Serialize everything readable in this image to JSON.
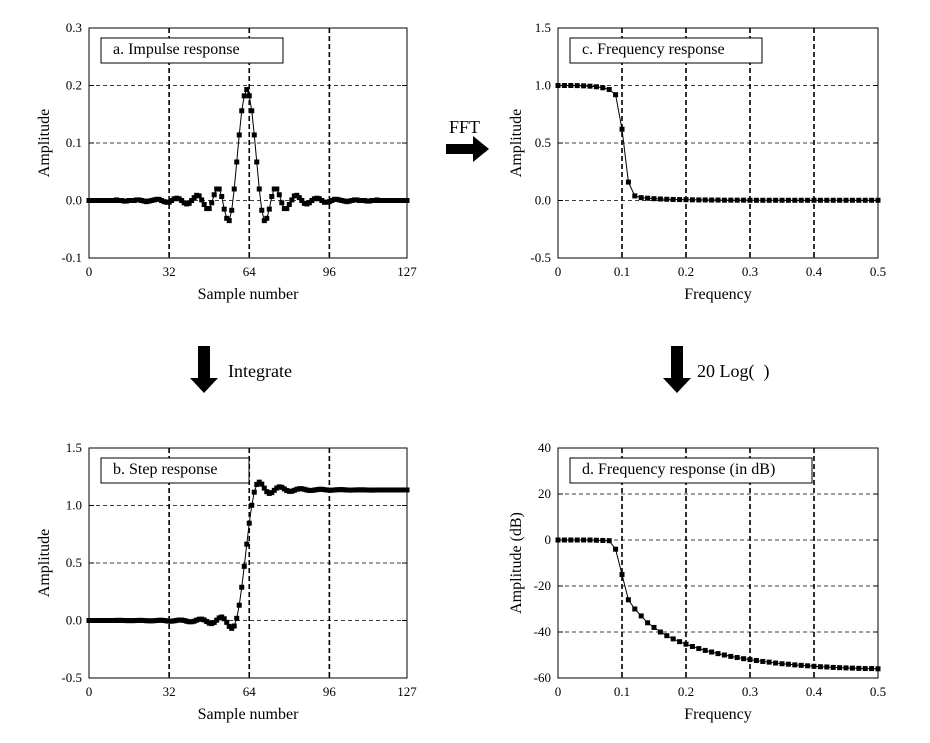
{
  "figure": {
    "transforms": [
      {
        "id": "fft",
        "label": "FFT"
      },
      {
        "id": "integrate",
        "label": "Integrate"
      },
      {
        "id": "log",
        "label": "20 Log(  )"
      }
    ]
  },
  "chart_data": [
    {
      "id": "a",
      "type": "line",
      "title": "a.  Impulse response",
      "xlabel": "Sample number",
      "ylabel": "Amplitude",
      "xlim": [
        0,
        127
      ],
      "ylim": [
        -0.1,
        0.3
      ],
      "xticks": [
        0,
        32,
        64,
        96,
        127
      ],
      "xtick_labels": [
        "0",
        "32",
        "64",
        "96",
        "127"
      ],
      "yticks": [
        -0.1,
        0.0,
        0.1,
        0.2,
        0.3
      ],
      "ytick_labels": [
        "-0.1",
        "0.0",
        "0.1",
        "0.2",
        "0.3"
      ],
      "grid": true,
      "markers": "square",
      "x": [
        0,
        1,
        2,
        3,
        4,
        5,
        6,
        7,
        8,
        9,
        10,
        11,
        12,
        13,
        14,
        15,
        16,
        17,
        18,
        19,
        20,
        21,
        22,
        23,
        24,
        25,
        26,
        27,
        28,
        29,
        30,
        31,
        32,
        33,
        34,
        35,
        36,
        37,
        38,
        39,
        40,
        41,
        42,
        43,
        44,
        45,
        46,
        47,
        48,
        49,
        50,
        51,
        52,
        53,
        54,
        55,
        56,
        57,
        58,
        59,
        60,
        61,
        62,
        63,
        64,
        65,
        66,
        67,
        68,
        69,
        70,
        71,
        72,
        73,
        74,
        75,
        76,
        77,
        78,
        79,
        80,
        81,
        82,
        83,
        84,
        85,
        86,
        87,
        88,
        89,
        90,
        91,
        92,
        93,
        94,
        95,
        96,
        97,
        98,
        99,
        100,
        101,
        102,
        103,
        104,
        105,
        106,
        107,
        108,
        109,
        110,
        111,
        112,
        113,
        114,
        115,
        116,
        117,
        118,
        119,
        120,
        121,
        122,
        123,
        124,
        125,
        126,
        127
      ],
      "y": [
        0.0,
        0.0,
        0.0,
        0.0,
        0.0,
        0.0,
        0.0,
        0.0,
        0.0,
        0.0,
        0.0,
        0.001,
        0.0,
        0.0,
        -0.001,
        -0.001,
        0.0,
        0.0,
        0.0,
        0.001,
        0.001,
        0.0,
        -0.001,
        -0.002,
        -0.001,
        0.0,
        0.001,
        0.002,
        0.002,
        0.0,
        -0.002,
        -0.003,
        -0.003,
        0.0,
        0.003,
        0.004,
        0.003,
        0.0,
        -0.004,
        -0.006,
        -0.005,
        0.0,
        0.005,
        0.009,
        0.008,
        0.001,
        -0.007,
        -0.014,
        -0.014,
        -0.004,
        0.01,
        0.02,
        0.02,
        0.007,
        -0.015,
        -0.031,
        -0.035,
        -0.017,
        0.02,
        0.067,
        0.114,
        0.156,
        0.182,
        0.193,
        0.182,
        0.156,
        0.114,
        0.067,
        0.02,
        -0.017,
        -0.035,
        -0.031,
        -0.015,
        0.007,
        0.02,
        0.02,
        0.01,
        -0.004,
        -0.014,
        -0.014,
        -0.007,
        0.001,
        0.008,
        0.009,
        0.005,
        0.0,
        -0.005,
        -0.006,
        -0.004,
        0.0,
        0.003,
        0.004,
        0.003,
        0.0,
        -0.003,
        -0.003,
        -0.002,
        0.0,
        0.002,
        0.002,
        0.001,
        0.0,
        -0.001,
        -0.002,
        -0.001,
        0.0,
        0.001,
        0.001,
        0.0,
        0.0,
        0.0,
        -0.001,
        -0.001,
        0.0,
        0.0,
        0.001,
        0.0,
        0.0,
        0.0,
        0.0,
        0.0,
        0.0,
        0.0,
        0.0,
        0.0,
        0.0,
        0.0,
        0.0
      ]
    },
    {
      "id": "b",
      "type": "line",
      "title": "b.  Step response",
      "xlabel": "Sample number",
      "ylabel": "Amplitude",
      "xlim": [
        0,
        127
      ],
      "ylim": [
        -0.5,
        1.5
      ],
      "xticks": [
        0,
        32,
        64,
        96,
        127
      ],
      "xtick_labels": [
        "0",
        "32",
        "64",
        "96",
        "127"
      ],
      "yticks": [
        -0.5,
        0.0,
        0.5,
        1.0,
        1.5
      ],
      "ytick_labels": [
        "-0.5",
        "0.0",
        "0.5",
        "1.0",
        "1.5"
      ],
      "grid": true,
      "markers": "square",
      "x": [
        0,
        1,
        2,
        3,
        4,
        5,
        6,
        7,
        8,
        9,
        10,
        11,
        12,
        13,
        14,
        15,
        16,
        17,
        18,
        19,
        20,
        21,
        22,
        23,
        24,
        25,
        26,
        27,
        28,
        29,
        30,
        31,
        32,
        33,
        34,
        35,
        36,
        37,
        38,
        39,
        40,
        41,
        42,
        43,
        44,
        45,
        46,
        47,
        48,
        49,
        50,
        51,
        52,
        53,
        54,
        55,
        56,
        57,
        58,
        59,
        60,
        61,
        62,
        63,
        64,
        65,
        66,
        67,
        68,
        69,
        70,
        71,
        72,
        73,
        74,
        75,
        76,
        77,
        78,
        79,
        80,
        81,
        82,
        83,
        84,
        85,
        86,
        87,
        88,
        89,
        90,
        91,
        92,
        93,
        94,
        95,
        96,
        97,
        98,
        99,
        100,
        101,
        102,
        103,
        104,
        105,
        106,
        107,
        108,
        109,
        110,
        111,
        112,
        113,
        114,
        115,
        116,
        117,
        118,
        119,
        120,
        121,
        122,
        123,
        124,
        125,
        126,
        127
      ],
      "y": [
        0.0,
        0.0,
        0.0,
        0.0,
        0.0,
        0.0,
        0.0,
        0.0,
        0.0,
        0.0,
        0.0,
        0.001,
        0.001,
        0.001,
        0.0,
        -0.001,
        -0.001,
        -0.001,
        -0.001,
        0.0,
        0.001,
        0.001,
        0.0,
        -0.002,
        -0.003,
        -0.003,
        -0.002,
        0.0,
        0.002,
        0.002,
        0.0,
        -0.003,
        -0.006,
        -0.006,
        -0.003,
        0.001,
        0.004,
        0.004,
        0.0,
        -0.006,
        -0.011,
        -0.011,
        -0.006,
        0.003,
        0.011,
        0.012,
        0.005,
        -0.009,
        -0.023,
        -0.027,
        -0.017,
        0.003,
        0.023,
        0.03,
        0.015,
        -0.016,
        -0.051,
        -0.068,
        -0.048,
        0.019,
        0.133,
        0.289,
        0.471,
        0.664,
        0.846,
        1.002,
        1.116,
        1.183,
        1.203,
        1.186,
        1.151,
        1.12,
        1.105,
        1.112,
        1.132,
        1.152,
        1.162,
        1.158,
        1.144,
        1.13,
        1.123,
        1.124,
        1.132,
        1.141,
        1.146,
        1.146,
        1.141,
        1.135,
        1.131,
        1.131,
        1.134,
        1.138,
        1.141,
        1.141,
        1.138,
        1.135,
        1.133,
        1.133,
        1.135,
        1.137,
        1.138,
        1.138,
        1.137,
        1.135,
        1.134,
        1.134,
        1.135,
        1.136,
        1.136,
        1.136,
        1.136,
        1.135,
        1.134,
        1.134,
        1.134,
        1.135,
        1.135,
        1.135,
        1.135,
        1.135,
        1.135,
        1.135,
        1.135,
        1.135,
        1.135,
        1.135,
        1.135,
        1.135
      ]
    },
    {
      "id": "c",
      "type": "line",
      "title": "c.  Frequency response",
      "xlabel": "Frequency",
      "ylabel": "Amplitude",
      "xlim": [
        0,
        0.5
      ],
      "ylim": [
        -0.5,
        1.5
      ],
      "xticks": [
        0,
        0.1,
        0.2,
        0.3,
        0.4,
        0.5
      ],
      "xtick_labels": [
        "0",
        "0.1",
        "0.2",
        "0.3",
        "0.4",
        "0.5"
      ],
      "yticks": [
        -0.5,
        0.0,
        0.5,
        1.0,
        1.5
      ],
      "ytick_labels": [
        "-0.5",
        "0.0",
        "0.5",
        "1.0",
        "1.5"
      ],
      "grid": true,
      "markers": "square",
      "x": [
        0.0,
        0.01,
        0.02,
        0.03,
        0.04,
        0.05,
        0.06,
        0.07,
        0.08,
        0.09,
        0.1,
        0.11,
        0.12,
        0.13,
        0.14,
        0.15,
        0.16,
        0.17,
        0.18,
        0.19,
        0.2,
        0.21,
        0.22,
        0.23,
        0.24,
        0.25,
        0.26,
        0.27,
        0.28,
        0.29,
        0.3,
        0.31,
        0.32,
        0.33,
        0.34,
        0.35,
        0.36,
        0.37,
        0.38,
        0.39,
        0.4,
        0.41,
        0.42,
        0.43,
        0.44,
        0.45,
        0.46,
        0.47,
        0.48,
        0.49,
        0.5
      ],
      "y": [
        1.0,
        1.0,
        1.0,
        0.999,
        0.997,
        0.994,
        0.989,
        0.98,
        0.965,
        0.92,
        0.62,
        0.16,
        0.04,
        0.025,
        0.02,
        0.016,
        0.013,
        0.011,
        0.009,
        0.008,
        0.007,
        0.006,
        0.005,
        0.005,
        0.004,
        0.004,
        0.003,
        0.003,
        0.003,
        0.003,
        0.002,
        0.002,
        0.002,
        0.002,
        0.002,
        0.002,
        0.002,
        0.002,
        0.002,
        0.002,
        0.002,
        0.002,
        0.002,
        0.002,
        0.002,
        0.002,
        0.002,
        0.002,
        0.002,
        0.002,
        0.002
      ]
    },
    {
      "id": "d",
      "type": "line",
      "title": "d.  Frequency response (in dB)",
      "xlabel": "Frequency",
      "ylabel": "Amplitude (dB)",
      "xlim": [
        0,
        0.5
      ],
      "ylim": [
        -60,
        40
      ],
      "xticks": [
        0,
        0.1,
        0.2,
        0.3,
        0.4,
        0.5
      ],
      "xtick_labels": [
        "0",
        "0.1",
        "0.2",
        "0.3",
        "0.4",
        "0.5"
      ],
      "yticks": [
        -60,
        -40,
        -20,
        0,
        20,
        40
      ],
      "ytick_labels": [
        "-60",
        "-40",
        "-20",
        "0",
        "20",
        "40"
      ],
      "grid": true,
      "markers": "square",
      "x": [
        0.0,
        0.01,
        0.02,
        0.03,
        0.04,
        0.05,
        0.06,
        0.07,
        0.08,
        0.09,
        0.1,
        0.11,
        0.12,
        0.13,
        0.14,
        0.15,
        0.16,
        0.17,
        0.18,
        0.19,
        0.2,
        0.21,
        0.22,
        0.23,
        0.24,
        0.25,
        0.26,
        0.27,
        0.28,
        0.29,
        0.3,
        0.31,
        0.32,
        0.33,
        0.34,
        0.35,
        0.36,
        0.37,
        0.38,
        0.39,
        0.4,
        0.41,
        0.42,
        0.43,
        0.44,
        0.45,
        0.46,
        0.47,
        0.48,
        0.49,
        0.5
      ],
      "y": [
        0.0,
        0.0,
        0.0,
        0.0,
        0.0,
        0.0,
        -0.1,
        -0.2,
        -0.3,
        -4.0,
        -15.0,
        -26.0,
        -30.0,
        -33.0,
        -36.0,
        -38.0,
        -40.0,
        -41.6,
        -43.0,
        -44.2,
        -45.3,
        -46.3,
        -47.2,
        -48.0,
        -48.7,
        -49.4,
        -50.0,
        -50.6,
        -51.1,
        -51.6,
        -52.0,
        -52.4,
        -52.8,
        -53.1,
        -53.5,
        -53.8,
        -54.0,
        -54.3,
        -54.5,
        -54.7,
        -54.9,
        -55.1,
        -55.2,
        -55.4,
        -55.5,
        -55.6,
        -55.7,
        -55.8,
        -55.9,
        -55.9,
        -56.0
      ]
    }
  ]
}
